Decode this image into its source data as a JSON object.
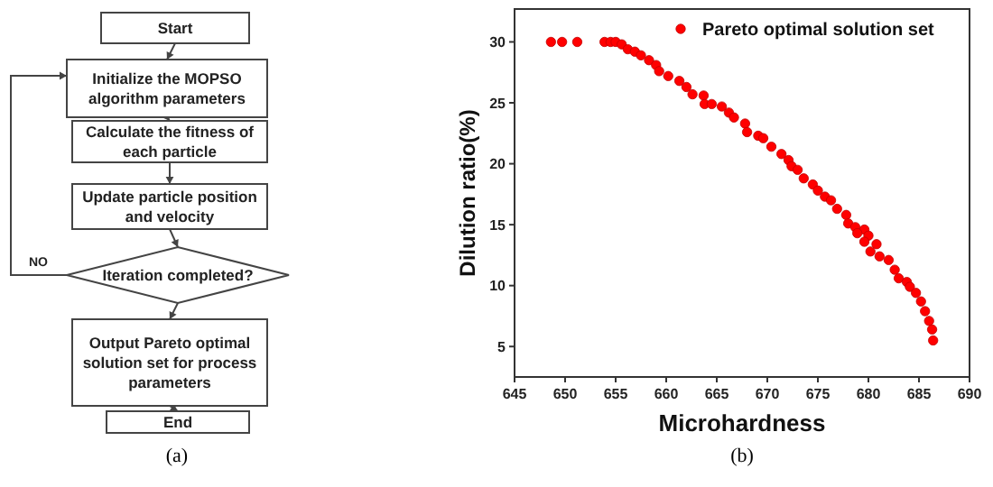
{
  "chart_data": [
    {
      "type": "other",
      "annotations": [
        "Start",
        "Initialize the MOPSO algorithm parameters",
        "Calculate the fitness of each particle",
        "Update particle position and velocity",
        "Iteration completed?",
        "Output Pareto optimal solution set for process parameters",
        "End",
        "NO",
        "(a)"
      ]
    },
    {
      "type": "scatter",
      "xlabel": "Microhardness",
      "ylabel": "Dilution ratio(%)",
      "annotations": [
        "(b)"
      ],
      "xlim": [
        645,
        690
      ],
      "xticks": [
        645,
        650,
        655,
        660,
        665,
        670,
        675,
        680,
        685,
        690
      ],
      "ylim": [
        2.5,
        32.7
      ],
      "yticks": [
        5,
        10,
        15,
        20,
        25,
        30
      ],
      "grid": false,
      "legend": "top right",
      "marker": "circle",
      "series": [
        {
          "name": "Pareto optimal solution set",
          "color": "#ff0000",
          "x": [
            648.6,
            649.7,
            651.2,
            653.9,
            654.5,
            655,
            655.6,
            656.2,
            656.9,
            657.5,
            658.3,
            659,
            659.3,
            660.2,
            661.3,
            662,
            662.6,
            663.7,
            663.8,
            664.5,
            665.5,
            666.2,
            666.7,
            667.8,
            668,
            669.1,
            669.6,
            670.4,
            671.4,
            672.1,
            672.4,
            673,
            673.6,
            674.5,
            675,
            675.7,
            676.3,
            676.9,
            677.8,
            678,
            678.7,
            679.6,
            680,
            680.8,
            678.9,
            679.6,
            680.2,
            681.1,
            682,
            682.6,
            683,
            683.8,
            684.1,
            684.7,
            685.2,
            685.6,
            686,
            686.3,
            686.4
          ],
          "values": [
            30,
            30,
            30,
            30,
            30,
            30,
            29.8,
            29.4,
            29.2,
            28.9,
            28.5,
            28.1,
            27.6,
            27.2,
            26.8,
            26.3,
            25.7,
            25.6,
            24.9,
            24.9,
            24.7,
            24.2,
            23.8,
            23.3,
            22.6,
            22.3,
            22.1,
            21.4,
            20.8,
            20.3,
            19.8,
            19.5,
            18.8,
            18.3,
            17.8,
            17.3,
            17,
            16.3,
            15.8,
            15.1,
            14.8,
            14.6,
            14.1,
            13.4,
            14.3,
            13.6,
            12.8,
            12.4,
            12.1,
            11.3,
            10.6,
            10.3,
            9.9,
            9.4,
            8.7,
            7.9,
            7.1,
            6.4,
            5.5
          ]
        }
      ]
    }
  ]
}
